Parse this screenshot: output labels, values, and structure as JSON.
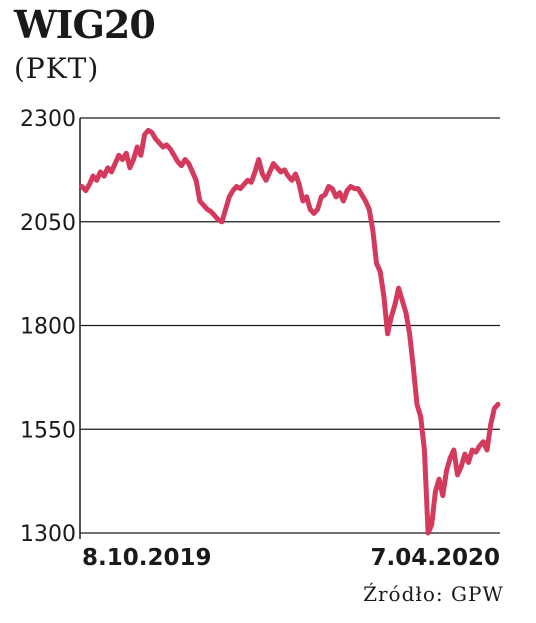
{
  "chart_data": {
    "type": "line",
    "title": "WIG20",
    "subtitle": "(PKT)",
    "source": "Źródło: GPW",
    "ylim": [
      1300,
      2300
    ],
    "y_ticks": [
      "2300",
      "2050",
      "1800",
      "1550",
      "1300"
    ],
    "x_ticks": [
      "8.10.2019",
      "7.04.2020"
    ],
    "grid": true,
    "line_color": "#d43a5c",
    "series": [
      {
        "values": [
          2135,
          2125,
          2140,
          2160,
          2150,
          2170,
          2160,
          2180,
          2170,
          2190,
          2210,
          2200,
          2215,
          2180,
          2200,
          2230,
          2210,
          2260,
          2270,
          2265,
          2250,
          2240,
          2230,
          2235,
          2225,
          2210,
          2195,
          2185,
          2200,
          2190,
          2170,
          2150,
          2100,
          2090,
          2080,
          2075,
          2065,
          2055,
          2050,
          2080,
          2110,
          2125,
          2135,
          2130,
          2140,
          2150,
          2145,
          2170,
          2200,
          2165,
          2150,
          2170,
          2190,
          2180,
          2170,
          2175,
          2160,
          2150,
          2165,
          2140,
          2100,
          2110,
          2080,
          2070,
          2080,
          2110,
          2115,
          2135,
          2130,
          2110,
          2120,
          2100,
          2125,
          2135,
          2130,
          2130,
          2115,
          2100,
          2080,
          2030,
          1950,
          1930,
          1870,
          1780,
          1820,
          1850,
          1890,
          1860,
          1830,
          1780,
          1700,
          1610,
          1580,
          1500,
          1300,
          1320,
          1400,
          1430,
          1390,
          1450,
          1480,
          1500,
          1440,
          1460,
          1490,
          1470,
          1500,
          1495,
          1510,
          1520,
          1500,
          1560,
          1600,
          1610
        ]
      }
    ]
  }
}
